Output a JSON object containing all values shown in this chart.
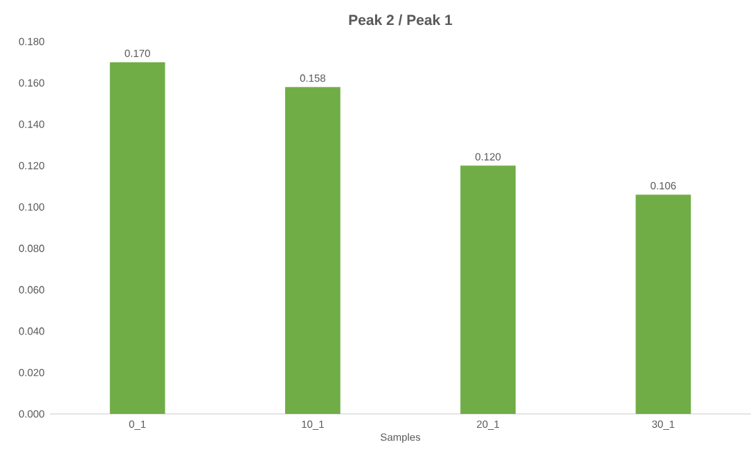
{
  "chart_data": {
    "type": "bar",
    "title": "Peak 2 / Peak 1",
    "xlabel": "Samples",
    "categories": [
      "0_1",
      "10_1",
      "20_1",
      "30_1"
    ],
    "values": [
      0.17,
      0.158,
      0.12,
      0.106
    ],
    "value_labels": [
      "0.170",
      "0.158",
      "0.120",
      "0.106"
    ],
    "color": "#70ad47",
    "ylim": [
      0,
      0.18
    ],
    "yticks": [
      {
        "value": 0,
        "label": "0.000"
      },
      {
        "value": 0.02,
        "label": "0.020"
      },
      {
        "value": 0.04,
        "label": "0.040"
      },
      {
        "value": 0.06,
        "label": "0.060"
      },
      {
        "value": 0.08,
        "label": "0.080"
      },
      {
        "value": 0.1,
        "label": "0.100"
      },
      {
        "value": 0.12,
        "label": "0.120"
      },
      {
        "value": 0.14,
        "label": "0.140"
      },
      {
        "value": 0.16,
        "label": "0.160"
      },
      {
        "value": 0.18,
        "label": "0.180"
      }
    ],
    "grid": false
  }
}
